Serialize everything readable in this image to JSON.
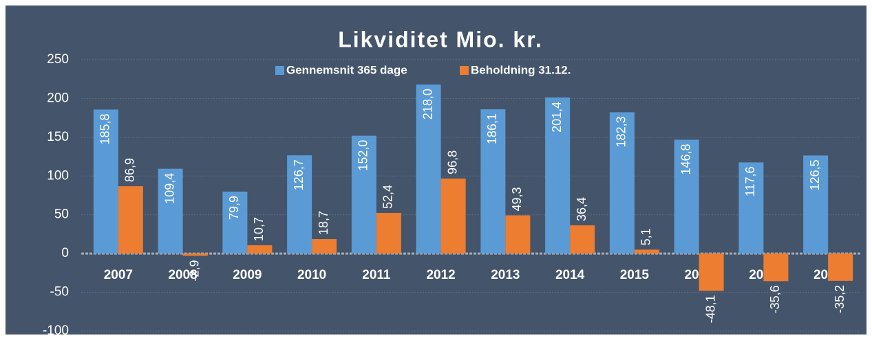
{
  "chart_data": {
    "type": "bar",
    "title": "Likviditet Mio. kr.",
    "categories": [
      "2007",
      "2008",
      "2009",
      "2010",
      "2011",
      "2012",
      "2013",
      "2014",
      "2015",
      "2016",
      "2017",
      "2018"
    ],
    "series": [
      {
        "name": "Gennemsnit 365 dage",
        "color": "#5b9bd5",
        "values": [
          185.8,
          109.4,
          79.9,
          126.7,
          152.0,
          218.0,
          186.1,
          201.4,
          182.3,
          146.8,
          117.6,
          126.5
        ],
        "value_labels": [
          "185,8",
          "109,4",
          "79,9",
          "126,7",
          "152,0",
          "218,0",
          "186,1",
          "201,4",
          "182,3",
          "146,8",
          "117,6",
          "126,5"
        ]
      },
      {
        "name": "Beholdning 31.12.",
        "color": "#ed7d31",
        "values": [
          86.9,
          -2.9,
          10.7,
          18.7,
          52.4,
          96.8,
          49.3,
          36.4,
          5.1,
          -48.1,
          -35.6,
          -35.2
        ],
        "value_labels": [
          "86,9",
          "-2,9",
          "10,7",
          "18,7",
          "52,4",
          "96,8",
          "49,3",
          "36,4",
          "5,1",
          "-48,1",
          "-35,6",
          "-35,2"
        ]
      }
    ],
    "ylim": [
      -100,
      250
    ],
    "yticks": [
      -100,
      -50,
      0,
      50,
      100,
      150,
      200,
      250
    ],
    "grid": true
  }
}
